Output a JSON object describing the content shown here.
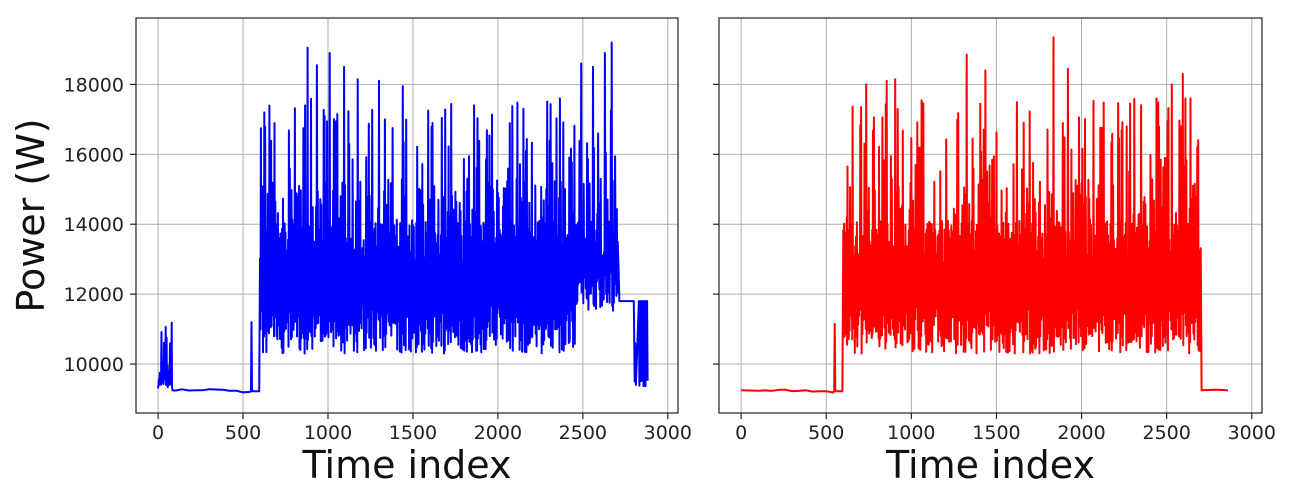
{
  "chart_data": [
    {
      "type": "line",
      "series": [
        {
          "color": "#0000ff"
        }
      ],
      "xlabel": "Time index",
      "ylabel": "Power (W)",
      "xlim": [
        -130,
        3060
      ],
      "ylim": [
        8600,
        19900
      ],
      "xticks": [
        0,
        500,
        1000,
        1500,
        2000,
        2500,
        3000
      ],
      "yticks": [
        10000,
        12000,
        14000,
        16000,
        18000
      ],
      "grid": true,
      "baseline_before": 9250,
      "baseline_after_early": 12800,
      "baseline_after": 11800,
      "active_window": [
        600,
        2700
      ],
      "spike": {
        "x": 550,
        "y": 11200
      },
      "peaks": [
        {
          "x": 880,
          "y": 19050
        },
        {
          "x": 935,
          "y": 18550
        },
        {
          "x": 1010,
          "y": 18900
        },
        {
          "x": 1055,
          "y": 17150
        },
        {
          "x": 1095,
          "y": 18500
        },
        {
          "x": 1175,
          "y": 18150
        },
        {
          "x": 1300,
          "y": 18100
        },
        {
          "x": 1440,
          "y": 17950
        },
        {
          "x": 1590,
          "y": 17250
        },
        {
          "x": 1860,
          "y": 17400
        },
        {
          "x": 2150,
          "y": 17300
        },
        {
          "x": 2365,
          "y": 17600
        },
        {
          "x": 2490,
          "y": 18600
        },
        {
          "x": 2560,
          "y": 18500
        },
        {
          "x": 2630,
          "y": 18900
        },
        {
          "x": 2670,
          "y": 19200
        }
      ],
      "tail_drop": 9400,
      "x_end": 2880
    },
    {
      "type": "line",
      "series": [
        {
          "color": "#ff0000"
        }
      ],
      "xlabel": "Time index",
      "ylabel": "",
      "xlim": [
        -130,
        3060
      ],
      "ylim": [
        8600,
        19900
      ],
      "xticks": [
        0,
        500,
        1000,
        1500,
        2000,
        2500,
        3000
      ],
      "yticks": [
        10000,
        12000,
        14000,
        16000,
        18000
      ],
      "grid": true,
      "baseline_before": 9250,
      "baseline_after": 9250,
      "active_window": [
        600,
        2700
      ],
      "spike": {
        "x": 550,
        "y": 11150
      },
      "peaks": [
        {
          "x": 735,
          "y": 18000
        },
        {
          "x": 855,
          "y": 18100
        },
        {
          "x": 905,
          "y": 18150
        },
        {
          "x": 1325,
          "y": 18850
        },
        {
          "x": 1435,
          "y": 18400
        },
        {
          "x": 1835,
          "y": 19350
        },
        {
          "x": 1920,
          "y": 18450
        },
        {
          "x": 2285,
          "y": 17450
        },
        {
          "x": 2440,
          "y": 17600
        },
        {
          "x": 2530,
          "y": 18000
        },
        {
          "x": 2595,
          "y": 18300
        },
        {
          "x": 2640,
          "y": 17600
        }
      ],
      "tail_drop": 9250,
      "x_end": 2880
    }
  ]
}
